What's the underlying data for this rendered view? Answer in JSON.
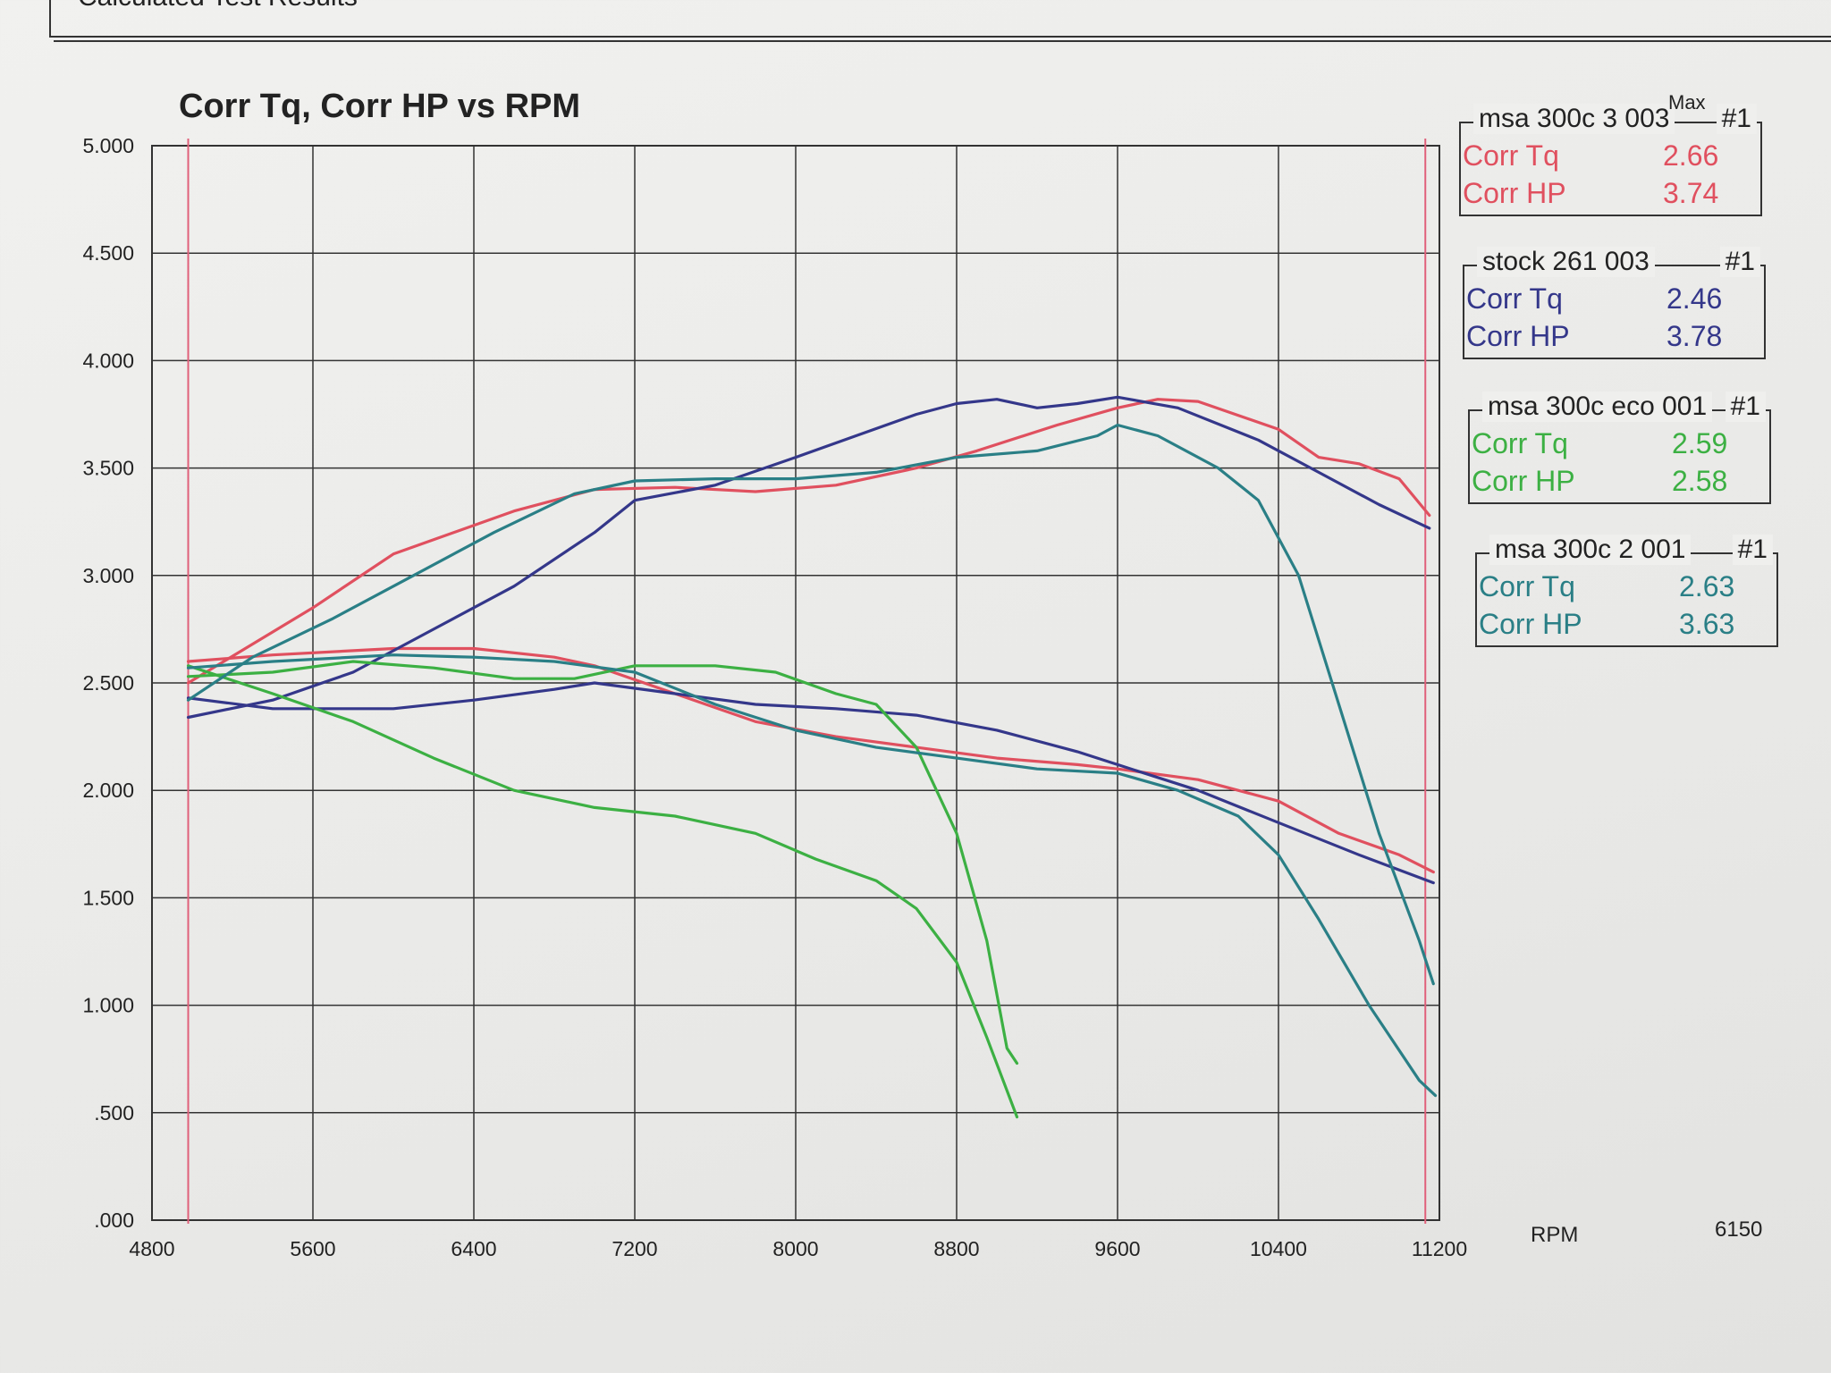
{
  "header": {
    "title": "Calculated Test Results"
  },
  "chart_data": {
    "type": "line",
    "title": "Corr Tq, Corr HP vs RPM",
    "xlabel": "RPM",
    "ylabel": "",
    "xlim": [
      4800,
      11200
    ],
    "ylim": [
      0,
      5
    ],
    "x_ticks": [
      "4800",
      "5600",
      "6400",
      "7200",
      "8000",
      "8800",
      "9600",
      "10400",
      "11200"
    ],
    "y_ticks": [
      ".000",
      ".500",
      "1.000",
      "1.500",
      "2.000",
      "2.500",
      "3.000",
      "3.500",
      "4.000",
      "4.500",
      "5.000"
    ],
    "grid": true,
    "rpm_readout": "6150",
    "limit_lines_rpm": [
      4980,
      11130
    ],
    "limit_line_color": "#e0607a",
    "legend_placement": "right",
    "runs": [
      {
        "name": "msa 300c 3 003",
        "run": "#1",
        "max_label": "Max",
        "color": "#e0505f",
        "max": {
          "tq_label": "Corr Tq",
          "tq": "2.66",
          "hp_label": "Corr HP",
          "hp": "3.74"
        },
        "series": [
          {
            "name": "Corr HP",
            "x": [
              4980,
              5600,
              6000,
              6600,
              7000,
              7400,
              7800,
              8200,
              8600,
              8900,
              9300,
              9600,
              9800,
              10000,
              10400,
              10600,
              10800,
              11000,
              11150
            ],
            "y": [
              2.5,
              2.85,
              3.1,
              3.3,
              3.4,
              3.41,
              3.39,
              3.42,
              3.5,
              3.58,
              3.7,
              3.78,
              3.82,
              3.81,
              3.68,
              3.55,
              3.52,
              3.45,
              3.28
            ]
          },
          {
            "name": "Corr Tq",
            "x": [
              4980,
              5400,
              6000,
              6400,
              6800,
              7000,
              7400,
              7800,
              8200,
              8600,
              9000,
              9400,
              9600,
              10000,
              10400,
              10700,
              11000,
              11170
            ],
            "y": [
              2.6,
              2.63,
              2.66,
              2.66,
              2.62,
              2.58,
              2.45,
              2.32,
              2.25,
              2.2,
              2.15,
              2.12,
              2.1,
              2.05,
              1.95,
              1.8,
              1.7,
              1.62
            ]
          }
        ]
      },
      {
        "name": "stock 261 003",
        "run": "#1",
        "color": "#34378a",
        "max": {
          "tq_label": "Corr Tq",
          "tq": "2.46",
          "hp_label": "Corr HP",
          "hp": "3.78"
        },
        "series": [
          {
            "name": "Corr HP",
            "x": [
              4980,
              5400,
              5800,
              6200,
              6600,
              7000,
              7200,
              7600,
              8000,
              8300,
              8600,
              8800,
              9000,
              9200,
              9400,
              9600,
              9900,
              10300,
              10600,
              10900,
              11150
            ],
            "y": [
              2.34,
              2.42,
              2.55,
              2.75,
              2.95,
              3.2,
              3.35,
              3.42,
              3.55,
              3.65,
              3.75,
              3.8,
              3.82,
              3.78,
              3.8,
              3.83,
              3.78,
              3.63,
              3.48,
              3.33,
              3.22
            ]
          },
          {
            "name": "Corr Tq",
            "x": [
              4980,
              5400,
              6000,
              6400,
              6800,
              7000,
              7400,
              7800,
              8200,
              8600,
              9000,
              9400,
              9600,
              10000,
              10400,
              10800,
              11170
            ],
            "y": [
              2.43,
              2.38,
              2.38,
              2.42,
              2.47,
              2.5,
              2.45,
              2.4,
              2.38,
              2.35,
              2.28,
              2.18,
              2.12,
              2.0,
              1.85,
              1.7,
              1.57
            ]
          }
        ]
      },
      {
        "name": "msa 300c eco 001",
        "run": "#1",
        "color": "#3cb043",
        "max": {
          "tq_label": "Corr Tq",
          "tq": "2.59",
          "hp_label": "Corr HP",
          "hp": "2.58"
        },
        "series": [
          {
            "name": "Corr HP",
            "x": [
              4980,
              5400,
              5800,
              6200,
              6600,
              6900,
              7200,
              7600,
              7900,
              8200,
              8400,
              8600,
              8800,
              8950,
              9050,
              9100
            ],
            "y": [
              2.53,
              2.55,
              2.6,
              2.57,
              2.52,
              2.52,
              2.58,
              2.58,
              2.55,
              2.45,
              2.4,
              2.2,
              1.8,
              1.3,
              0.8,
              0.73
            ]
          },
          {
            "name": "Corr Tq",
            "x": [
              4980,
              5400,
              5800,
              6200,
              6600,
              7000,
              7400,
              7800,
              8100,
              8400,
              8600,
              8800,
              8950,
              9100
            ],
            "y": [
              2.58,
              2.45,
              2.32,
              2.15,
              2.0,
              1.92,
              1.88,
              1.8,
              1.68,
              1.58,
              1.45,
              1.2,
              0.85,
              0.48
            ]
          }
        ]
      },
      {
        "name": "msa 300c 2 001",
        "run": "#1",
        "color": "#2a7f86",
        "max": {
          "tq_label": "Corr Tq",
          "tq": "2.63",
          "hp_label": "Corr HP",
          "hp": "3.63"
        },
        "series": [
          {
            "name": "Corr HP",
            "x": [
              4980,
              5300,
              5700,
              6100,
              6500,
              6900,
              7200,
              7600,
              8000,
              8400,
              8800,
              9200,
              9500,
              9600,
              9800,
              10100,
              10300,
              10500,
              10700,
              10900,
              11100,
              11170
            ],
            "y": [
              2.42,
              2.62,
              2.8,
              3.0,
              3.2,
              3.38,
              3.44,
              3.45,
              3.45,
              3.48,
              3.55,
              3.58,
              3.65,
              3.7,
              3.65,
              3.5,
              3.35,
              3.0,
              2.4,
              1.8,
              1.3,
              1.1
            ]
          },
          {
            "name": "Corr Tq",
            "x": [
              4980,
              5400,
              6000,
              6400,
              6800,
              7200,
              7600,
              8000,
              8400,
              8800,
              9200,
              9600,
              9900,
              10200,
              10400,
              10600,
              10850,
              11100,
              11180
            ],
            "y": [
              2.57,
              2.6,
              2.63,
              2.62,
              2.6,
              2.55,
              2.4,
              2.28,
              2.2,
              2.15,
              2.1,
              2.08,
              2.0,
              1.88,
              1.7,
              1.4,
              1.0,
              0.65,
              0.58
            ]
          }
        ]
      }
    ]
  }
}
